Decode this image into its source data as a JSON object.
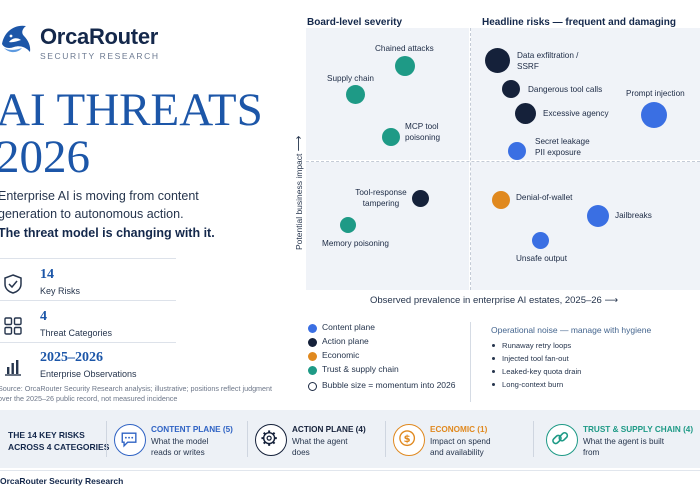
{
  "brand": {
    "name": "OrcaRouter",
    "tagline": "SECURITY RESEARCH",
    "footer": "OrcaRouter Security Research"
  },
  "hero": {
    "line1": "AI THREATS",
    "line2": "2026"
  },
  "intro": {
    "text": "Enterprise AI is moving from content generation to autonomous action.",
    "emphasis": "The threat model is changing with it."
  },
  "stats": [
    {
      "value": "14",
      "label": "Key Risks",
      "icon": "shield-check-icon"
    },
    {
      "value": "4",
      "label": "Threat Categories",
      "icon": "grid-icon"
    },
    {
      "value": "2025–2026",
      "label": "Enterprise Observations",
      "icon": "bar-chart-icon"
    }
  ],
  "source_note": "Source: OrcaRouter Security Research analysis; illustrative; positions reflect judgment over the 2025–26 public record, not measured incidence",
  "matrix": {
    "quadrant_left": "Board-level severity",
    "quadrant_right": "Headline risks — frequent and damaging",
    "y_axis": "Potential business impact",
    "x_axis": "Observed prevalence in enterprise AI estates, 2025–26",
    "colors": {
      "content": "#3a6fe3",
      "action": "#15213a",
      "economic": "#e0891f",
      "trust": "#1e9a86"
    },
    "risks": [
      {
        "label": "Chained attacks",
        "category": "trust"
      },
      {
        "label": "Supply chain",
        "category": "trust"
      },
      {
        "label": "MCP tool poisoning",
        "category": "trust"
      },
      {
        "label": "Tool-response tampering",
        "category": "action"
      },
      {
        "label": "Memory poisoning",
        "category": "trust"
      },
      {
        "label": "Data exfiltration / SSRF",
        "category": "action"
      },
      {
        "label": "Dangerous tool calls",
        "category": "action"
      },
      {
        "label": "Excessive agency",
        "category": "action"
      },
      {
        "label": "Prompt injection",
        "category": "content"
      },
      {
        "label": "Secret leakage PII exposure",
        "category": "content"
      },
      {
        "label": "Denial-of-wallet",
        "category": "economic"
      },
      {
        "label": "Jailbreaks",
        "category": "content"
      },
      {
        "label": "Unsafe output",
        "category": "content"
      }
    ]
  },
  "legend": [
    {
      "label": "Content plane",
      "color": "#3a6fe3"
    },
    {
      "label": "Action plane",
      "color": "#15213a"
    },
    {
      "label": "Economic",
      "color": "#e0891f"
    },
    {
      "label": "Trust & supply chain",
      "color": "#1e9a86"
    },
    {
      "label": "Bubble size = momentum into 2026"
    }
  ],
  "noise": {
    "title": "Operational noise — manage with hygiene",
    "items": [
      "Runaway retry loops",
      "Injected tool fan-out",
      "Leaked-key quota drain",
      "Long-context burn"
    ]
  },
  "categories_band": {
    "intro_line1": "THE 14 KEY RISKS",
    "intro_line2": "ACROSS 4 CATEGORIES",
    "items": [
      {
        "title": "CONTENT PLANE (5)",
        "desc1": "What the model",
        "desc2": "reads or writes",
        "icon": "chat-bubble-icon",
        "color": "#2f63c4"
      },
      {
        "title": "ACTION PLANE (4)",
        "desc1": "What the agent",
        "desc2": "does",
        "icon": "gear-icon",
        "color": "#15213a"
      },
      {
        "title": "ECONOMIC (1)",
        "desc1": "Impact on spend",
        "desc2": "and availability",
        "icon": "dollar-coin-icon",
        "color": "#e0891f"
      },
      {
        "title": "TRUST & SUPPLY CHAIN (4)",
        "desc1": "What the agent is built",
        "desc2": "from",
        "icon": "chain-link-icon",
        "color": "#1e9a86"
      }
    ]
  }
}
